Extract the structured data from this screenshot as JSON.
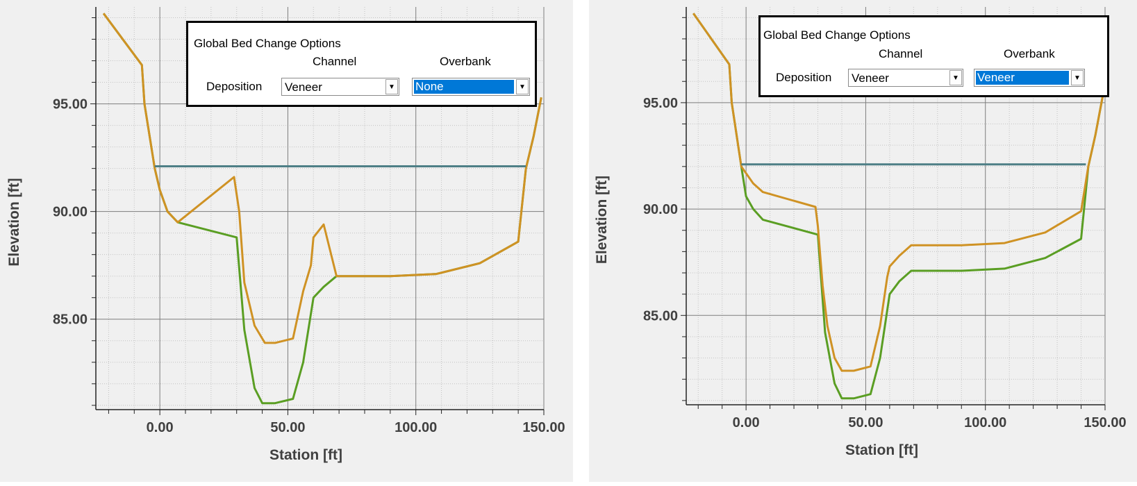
{
  "colors": {
    "before": "#5a9e23",
    "after": "#cf9224",
    "water": "#4e7f86",
    "grid_major": "#7d7d7d",
    "grid_minor": "#c2c2c2",
    "ylabel_prefix": "#7a0000"
  },
  "chart_data": [
    {
      "type": "line",
      "title": "",
      "xlabel": "Station [ft]",
      "ylabel": "Elevation [ft]",
      "xlim": [
        -25,
        150
      ],
      "ylim": [
        80.8,
        99.5
      ],
      "xticks": [
        0,
        50,
        100,
        150
      ],
      "xtick_labels": [
        "0.00",
        "50.00",
        "100.00",
        "150.00"
      ],
      "yticks": [
        85,
        90,
        95
      ],
      "ytick_labels": [
        "85.00",
        "90.00",
        "95.00"
      ],
      "grid": true,
      "series": [
        {
          "key": "before",
          "x": [
            -22,
            -7,
            -6,
            -2,
            0,
            3,
            7,
            30,
            33,
            37,
            40,
            45,
            52,
            56,
            60,
            64,
            69,
            90,
            108,
            125,
            140,
            143,
            146,
            149
          ],
          "y": [
            99.2,
            96.8,
            95,
            92,
            91,
            90,
            89.5,
            88.8,
            84.5,
            81.8,
            81.1,
            81.1,
            81.3,
            83,
            86,
            86.5,
            87,
            87,
            87.1,
            87.6,
            88.6,
            92,
            93.5,
            95.3
          ]
        },
        {
          "key": "after",
          "x": [
            -22,
            -7,
            -6,
            -2,
            0,
            3,
            7,
            29,
            31,
            33,
            37,
            41,
            45,
            52,
            56,
            59,
            60,
            64,
            69,
            90,
            108,
            125,
            140,
            143,
            146,
            149
          ],
          "y": [
            99.2,
            96.8,
            95,
            92,
            91,
            90,
            89.5,
            91.6,
            90,
            86.7,
            84.7,
            83.9,
            83.9,
            84.1,
            86.3,
            87.5,
            88.8,
            89.4,
            87,
            87,
            87.1,
            87.6,
            88.6,
            92,
            93.5,
            95.3
          ]
        },
        {
          "key": "water",
          "x": [
            -2,
            143
          ],
          "y": [
            92.1,
            92.1
          ]
        }
      ],
      "options_panel": {
        "title": "Global Bed Change Options",
        "col_channel": "Channel",
        "col_overbank": "Overbank",
        "row_label": "Deposition",
        "channel_value": "Veneer",
        "overbank_value": "None"
      }
    },
    {
      "type": "line",
      "title": "",
      "xlabel": "Station [ft]",
      "ylabel": "Elevation [ft]",
      "xlim": [
        -25,
        150
      ],
      "ylim": [
        80.8,
        99.5
      ],
      "xticks": [
        0,
        50,
        100,
        150
      ],
      "xtick_labels": [
        "0.00",
        "50.00",
        "100.00",
        "150.00"
      ],
      "yticks": [
        85,
        90,
        95
      ],
      "ytick_labels": [
        "85.00",
        "90.00",
        "95.00"
      ],
      "grid": true,
      "series": [
        {
          "key": "before",
          "x": [
            -22,
            -7,
            -6,
            -2,
            0,
            3,
            7,
            30,
            33,
            37,
            40,
            45,
            52,
            56,
            60,
            64,
            69,
            90,
            108,
            125,
            140,
            143,
            146,
            149
          ],
          "y": [
            99.2,
            96.8,
            95,
            92,
            90.6,
            90,
            89.5,
            88.8,
            84.2,
            81.8,
            81.1,
            81.1,
            81.3,
            83,
            86,
            86.6,
            87.1,
            87.1,
            87.2,
            87.7,
            88.6,
            92,
            93.5,
            95.3
          ]
        },
        {
          "key": "after",
          "x": [
            -22,
            -7,
            -6,
            -2,
            3,
            7,
            29,
            30,
            32,
            34,
            37,
            40,
            45,
            52,
            56,
            59,
            60,
            64,
            69,
            90,
            108,
            125,
            140,
            143,
            146,
            149
          ],
          "y": [
            99.2,
            96.8,
            95,
            92,
            91.2,
            90.8,
            90.1,
            89.2,
            86.4,
            84.5,
            83,
            82.4,
            82.4,
            82.6,
            84.5,
            86.8,
            87.3,
            87.8,
            88.3,
            88.3,
            88.4,
            88.9,
            89.9,
            92,
            93.5,
            95.3
          ]
        },
        {
          "key": "water",
          "x": [
            -2,
            142
          ],
          "y": [
            92.1,
            92.1
          ]
        }
      ],
      "options_panel": {
        "title": "Global Bed Change Options",
        "col_channel": "Channel",
        "col_overbank": "Overbank",
        "row_label": "Deposition",
        "channel_value": "Veneer",
        "overbank_value": "Veneer"
      }
    }
  ]
}
